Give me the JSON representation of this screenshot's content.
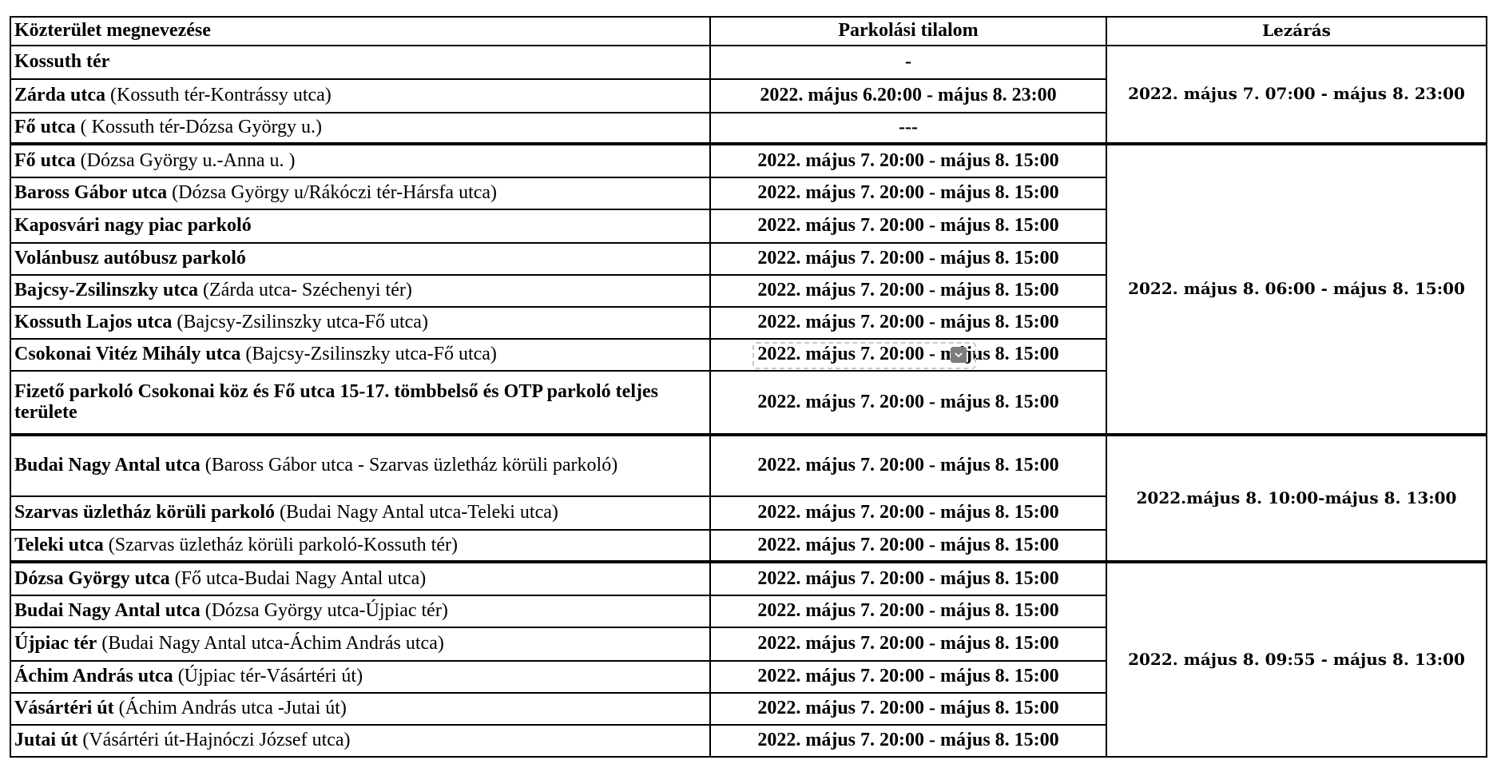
{
  "headers": {
    "location": "Közterület megnevezése",
    "parking_ban": "Parkolási tilalom",
    "closure": "Lezárás"
  },
  "rows": [
    {
      "name": "Kossuth tér",
      "detail": "",
      "parking": "-"
    },
    {
      "name": "Zárda utca",
      "detail": " (Kossuth tér-Kontrássy utca)",
      "parking": "2022. május 6.20:00 - május 8. 23:00"
    },
    {
      "name": "Fő utca",
      "detail": " ( Kossuth tér-Dózsa György u.)",
      "parking": "---"
    },
    {
      "name": "Fő utca",
      "detail": " (Dózsa György u.-Anna u. )",
      "parking": "2022. május 7. 20:00 - május 8. 15:00"
    },
    {
      "name": "Baross Gábor utca",
      "detail": " (Dózsa György u/Rákóczi tér-Hársfa utca)",
      "parking": "2022. május 7. 20:00 - május 8. 15:00"
    },
    {
      "name": "Kaposvári nagy piac parkoló",
      "detail": "",
      "parking": "2022. május 7. 20:00 - május 8. 15:00"
    },
    {
      "name": "Volánbusz autóbusz parkoló",
      "detail": "",
      "parking": "2022. május 7. 20:00 - május 8. 15:00"
    },
    {
      "name": "Bajcsy-Zsilinszky utca",
      "detail": " (Zárda utca- Széchenyi tér)",
      "parking": "2022. május 7. 20:00 - május 8. 15:00"
    },
    {
      "name": "Kossuth Lajos utca",
      "detail": " (Bajcsy-Zsilinszky utca-Fő utca)",
      "parking": "2022. május 7. 20:00 - május 8. 15:00"
    },
    {
      "name": "Csokonai Vitéz Mihály utca",
      "detail": " (Bajcsy-Zsilinszky utca-Fő utca)",
      "parking": "2022. május 7. 20:00 - május 8. 15:00",
      "dropdown": true
    },
    {
      "name": "Fizető parkoló Csokonai köz és Fő utca 15-17. tömbbelső és OTP parkoló teljes területe",
      "detail": "",
      "parking": "2022. május 7. 20:00 - május 8. 15:00"
    },
    {
      "name": "Budai Nagy Antal utca",
      "detail": " (Baross Gábor utca - Szarvas üzletház körüli parkoló)",
      "parking": "2022. május 7. 20:00 - május 8. 15:00"
    },
    {
      "name": "Szarvas üzletház körüli parkoló",
      "detail": " (Budai Nagy Antal utca-Teleki utca)",
      "parking": "2022. május 7. 20:00 - május 8. 15:00"
    },
    {
      "name": "Teleki utca",
      "detail": " (Szarvas üzletház körüli parkoló-Kossuth tér)",
      "parking": "2022. május 7. 20:00 - május 8. 15:00"
    },
    {
      "name": "Dózsa György utca",
      "detail": " (Fő utca-Budai Nagy Antal utca)",
      "parking": "2022. május 7. 20:00 - május 8. 15:00"
    },
    {
      "name": "Budai Nagy Antal utca",
      "detail": " (Dózsa György utca-Újpiac tér)",
      "parking": "2022. május 7. 20:00 - május 8. 15:00"
    },
    {
      "name": "Újpiac tér",
      "detail": " (Budai Nagy Antal utca-Áchim András utca)",
      "parking": "2022. május 7. 20:00 - május 8. 15:00"
    },
    {
      "name": "Áchim András utca",
      "detail": " (Újpiac tér-Vásártéri út)",
      "parking": "2022. május 7. 20:00 - május 8. 15:00"
    },
    {
      "name": "Vásártéri út",
      "detail": " (Áchim András utca -Jutai út)",
      "parking": "2022. május 7. 20:00 - május 8. 15:00"
    },
    {
      "name": "Jutai út",
      "detail": " (Vásártéri út-Hajnóczi József utca)",
      "parking": "2022. május 7. 20:00 - május 8. 15:00"
    }
  ],
  "closure_groups": [
    {
      "first_row": 0,
      "row_count": 3,
      "text": "2022. május 7. 07:00 - május 8. 23:00"
    },
    {
      "first_row": 3,
      "row_count": 8,
      "text": "2022. május 8. 06:00 - május 8. 15:00"
    },
    {
      "first_row": 11,
      "row_count": 3,
      "text": "2022.május 8. 10:00-május 8. 13:00"
    },
    {
      "first_row": 14,
      "row_count": 6,
      "text": "2022. május 8. 09:55 - május 8. 13:00"
    }
  ],
  "dropdown_icon": "chevron-down-icon"
}
